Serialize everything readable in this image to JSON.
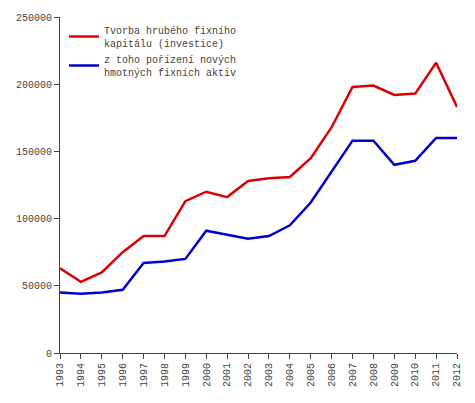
{
  "chart_data": {
    "type": "line",
    "x": [
      1993,
      1994,
      1995,
      1996,
      1997,
      1998,
      1999,
      2000,
      2001,
      2002,
      2003,
      2004,
      2005,
      2006,
      2007,
      2008,
      2009,
      2010,
      2011,
      2012
    ],
    "series": [
      {
        "name": "Tvorba hrubého fixního\nkapitálu (investice)",
        "color": "#dd0000",
        "values": [
          63000,
          53000,
          60000,
          75000,
          87000,
          87000,
          113000,
          120000,
          116000,
          128000,
          130000,
          131000,
          145000,
          168000,
          198000,
          199000,
          192000,
          193000,
          216000,
          183000
        ]
      },
      {
        "name": "z toho pořízení nových\nhmotných fixních aktiv",
        "color": "#0000cc",
        "values": [
          45000,
          44000,
          45000,
          47000,
          67000,
          68000,
          70000,
          91000,
          88000,
          85000,
          87000,
          95000,
          112000,
          135000,
          158000,
          158000,
          140000,
          143000,
          160000,
          160000
        ]
      }
    ],
    "xlim": [
      1993,
      2012
    ],
    "xticks": [
      1993,
      1994,
      1995,
      1996,
      1997,
      1998,
      1999,
      2000,
      2001,
      2002,
      2003,
      2004,
      2005,
      2006,
      2007,
      2008,
      2009,
      2010,
      2011,
      2012
    ],
    "ylim": [
      0,
      250000
    ],
    "yticks": [
      0,
      50000,
      100000,
      150000,
      200000,
      250000
    ],
    "grid": false,
    "legend": "upper left"
  }
}
